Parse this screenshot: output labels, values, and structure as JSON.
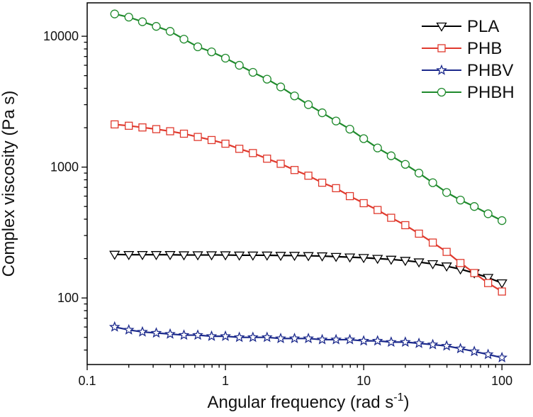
{
  "chart_data": {
    "type": "line",
    "xscale": "log",
    "yscale": "log",
    "xlim": [
      0.1,
      160
    ],
    "ylim": [
      31,
      18000
    ],
    "xlabel": "Angular frequency (rad s",
    "xlabel_sup": "-1",
    "xlabel_close": ")",
    "ylabel": "Complex viscosity (Pa s)",
    "xticks": [
      {
        "value": 0.1,
        "label": "0.1"
      },
      {
        "value": 1,
        "label": "1"
      },
      {
        "value": 10,
        "label": "10"
      },
      {
        "value": 100,
        "label": "100"
      }
    ],
    "yticks": [
      {
        "value": 100,
        "label": "100"
      },
      {
        "value": 1000,
        "label": "1000"
      },
      {
        "value": 10000,
        "label": "10000"
      }
    ],
    "grid": false,
    "legend_position": "top-right",
    "x": [
      0.158,
      0.2,
      0.251,
      0.316,
      0.398,
      0.501,
      0.631,
      0.794,
      1.0,
      1.26,
      1.58,
      2.0,
      2.51,
      3.16,
      3.98,
      5.01,
      6.31,
      7.94,
      10.0,
      12.6,
      15.8,
      20.0,
      25.1,
      31.6,
      39.8,
      50.1,
      63.1,
      79.4,
      100.0
    ],
    "series": [
      {
        "name": "PLA",
        "color": "#000000",
        "marker": "triangle-down",
        "values": [
          215,
          214,
          214,
          214,
          214,
          213,
          213,
          213,
          213,
          212,
          212,
          212,
          211,
          211,
          210,
          209,
          207,
          205,
          203,
          200,
          197,
          193,
          188,
          182,
          175,
          166,
          155,
          143,
          130
        ]
      },
      {
        "name": "PHB",
        "color": "#e03a2e",
        "marker": "square",
        "values": [
          2120,
          2070,
          2010,
          1950,
          1880,
          1800,
          1700,
          1610,
          1510,
          1380,
          1280,
          1160,
          1060,
          950,
          860,
          760,
          690,
          600,
          530,
          470,
          410,
          360,
          310,
          265,
          225,
          185,
          155,
          130,
          112
        ]
      },
      {
        "name": "PHBV",
        "color": "#1c2a8c",
        "marker": "star",
        "values": [
          60,
          57,
          55,
          54,
          53,
          52,
          52,
          51,
          51,
          50,
          50,
          50,
          49,
          49,
          49,
          48,
          48,
          48,
          47,
          47,
          46,
          46,
          45,
          44,
          43,
          41,
          39,
          37,
          35
        ]
      },
      {
        "name": "PHBH",
        "color": "#1f8a2c",
        "marker": "circle",
        "values": [
          14800,
          14000,
          12900,
          11900,
          10900,
          9500,
          8300,
          7600,
          6800,
          6000,
          5300,
          4700,
          4100,
          3500,
          3000,
          2600,
          2250,
          1950,
          1650,
          1400,
          1220,
          1050,
          900,
          760,
          640,
          560,
          500,
          440,
          390
        ]
      }
    ]
  }
}
